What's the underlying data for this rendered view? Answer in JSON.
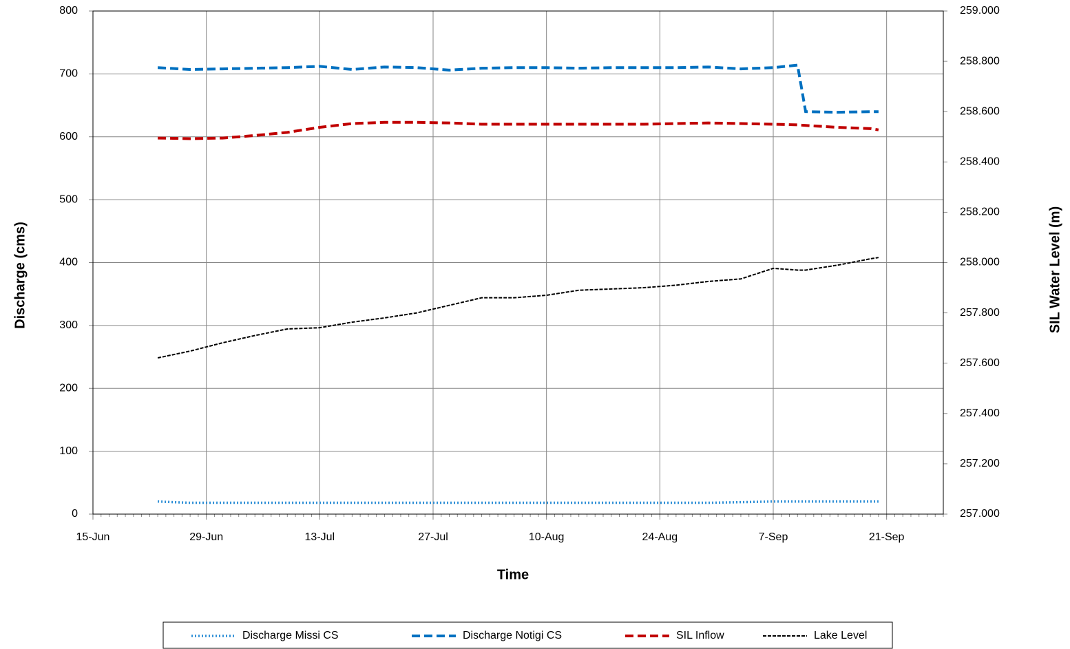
{
  "chart_data": {
    "type": "line",
    "x_label": "Time",
    "y_label": "Discharge (cms)",
    "y2_label": "SIL Water Level (m)",
    "x": [
      "23-Jun",
      "27-Jun",
      "1-Jul",
      "5-Jul",
      "9-Jul",
      "13-Jul",
      "17-Jul",
      "21-Jul",
      "25-Jul",
      "29-Jul",
      "2-Aug",
      "6-Aug",
      "10-Aug",
      "14-Aug",
      "18-Aug",
      "22-Aug",
      "26-Aug",
      "30-Aug",
      "3-Sep",
      "7-Sep",
      "10-Sep",
      "11-Sep",
      "15-Sep",
      "19-Sep",
      "20-Sep"
    ],
    "xlim": [
      "15-Jun",
      "28-Sep"
    ],
    "xticks": [
      "15-Jun",
      "29-Jun",
      "13-Jul",
      "27-Jul",
      "10-Aug",
      "24-Aug",
      "7-Sep",
      "21-Sep"
    ],
    "ylim": [
      0,
      800
    ],
    "yticks": [
      0,
      100,
      200,
      300,
      400,
      500,
      600,
      700,
      800
    ],
    "y2lim": [
      257,
      259
    ],
    "y2ticks": [
      {
        "value": 257,
        "label": "257.000"
      },
      {
        "value": 257.2,
        "label": "257.200"
      },
      {
        "value": 257.4,
        "label": "257.400"
      },
      {
        "value": 257.6,
        "label": "257.600"
      },
      {
        "value": 257.8,
        "label": "257.800"
      },
      {
        "value": 258,
        "label": "258.000"
      },
      {
        "value": 258.2,
        "label": "258.200"
      },
      {
        "value": 258.4,
        "label": "258.400"
      },
      {
        "value": 258.6,
        "label": "258.600"
      },
      {
        "value": 258.8,
        "label": "258.800"
      },
      {
        "value": 259,
        "label": "259.000"
      }
    ],
    "grid": true,
    "legend": "bottom",
    "series": [
      {
        "name": "Discharge Missi  CS",
        "color": "#2e8fd6",
        "linestyle": "dotted",
        "values": [
          20,
          18,
          18,
          18,
          18,
          18,
          18,
          18,
          18,
          18,
          18,
          18,
          18,
          18,
          18,
          18,
          18,
          18,
          19,
          20,
          20,
          20,
          20,
          20,
          20
        ]
      },
      {
        "name": "Discharge Notigi  CS",
        "color": "#0070c0",
        "linestyle": "dashed",
        "values": [
          710,
          707,
          708,
          709,
          710,
          712,
          707,
          711,
          710,
          706,
          709,
          710,
          710,
          709,
          710,
          710,
          710,
          711,
          708,
          710,
          714,
          640,
          639,
          640,
          640
        ]
      },
      {
        "name": "SIL Inflow",
        "color": "#c00000",
        "linestyle": "dashed",
        "values": [
          598,
          597,
          598,
          602,
          607,
          615,
          621,
          623,
          623,
          622,
          620,
          620,
          620,
          620,
          620,
          620,
          621,
          622,
          621,
          620,
          619,
          618,
          615,
          613,
          611
        ]
      },
      {
        "name": "Lake Level",
        "color": "#000000",
        "linestyle": "fine-dashed",
        "axis": "y2",
        "values": [
          257.621,
          257.648,
          257.681,
          257.71,
          257.736,
          257.741,
          257.763,
          257.78,
          257.8,
          257.83,
          257.86,
          257.86,
          257.87,
          257.89,
          257.895,
          257.9,
          257.91,
          257.925,
          257.935,
          257.977,
          257.97,
          257.97,
          257.99,
          258.015,
          258.02
        ]
      }
    ]
  }
}
